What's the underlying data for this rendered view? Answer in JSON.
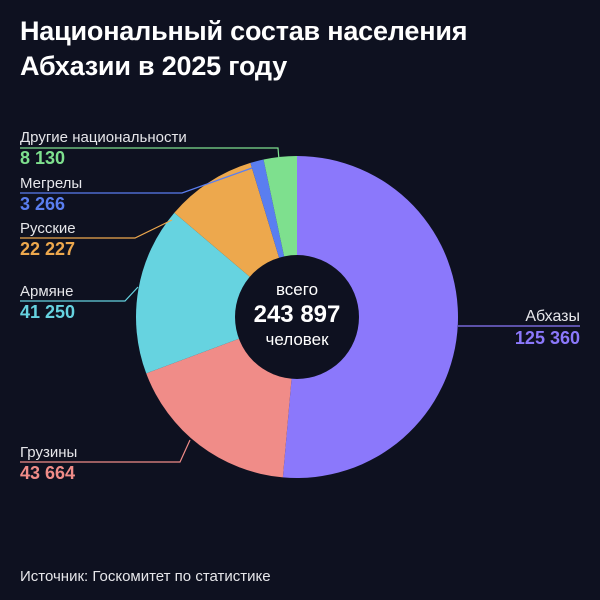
{
  "title_line1": "Национальный состав населения",
  "title_line2": "Абхазии в 2025 году",
  "source": "Источник: Госкомитет по статистике",
  "chart_data": {
    "type": "pie",
    "donut": true,
    "title": "Национальный состав населения Абхазии в 2025 году",
    "center_label": {
      "top": "всего",
      "value": "243 897",
      "bottom": "человек"
    },
    "slices": [
      {
        "name": "Абхазы",
        "value": 125360,
        "label": "125 360",
        "color": "#8b78fb"
      },
      {
        "name": "Грузины",
        "value": 43664,
        "label": "43 664",
        "color": "#f08c88"
      },
      {
        "name": "Армяне",
        "value": 41250,
        "label": "41 250",
        "color": "#66d3e0"
      },
      {
        "name": "Русские",
        "value": 22227,
        "label": "22 227",
        "color": "#eda84d"
      },
      {
        "name": "Мегрелы",
        "value": 3266,
        "label": "3 266",
        "color": "#5a7ef0"
      },
      {
        "name": "Другие национальности",
        "value": 8130,
        "label": "8 130",
        "color": "#7ee08e"
      }
    ]
  }
}
